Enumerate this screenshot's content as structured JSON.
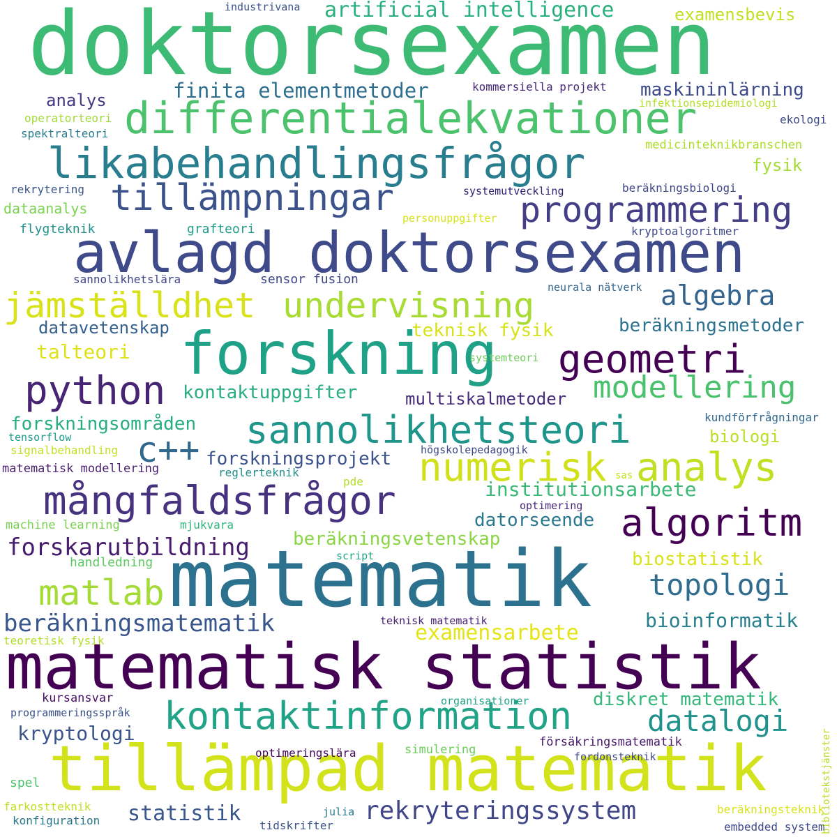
{
  "words": [
    {
      "text": "doktorsexamen",
      "color": "#3dbb74"
    },
    {
      "text": "avlagd doktorsexamen",
      "color": "#3f4a8a"
    },
    {
      "text": "differentialekvationer",
      "color": "#4cc26c"
    },
    {
      "text": "likabehandlingsfrågor",
      "color": "#287d8e"
    },
    {
      "text": "tillämpningar",
      "color": "#3b528b"
    },
    {
      "text": "programmering",
      "color": "#433e85"
    },
    {
      "text": "artificial intelligence",
      "color": "#2ab07f"
    },
    {
      "text": "examensbevis",
      "color": "#c2df23"
    },
    {
      "text": "finita elementmetoder",
      "color": "#2e6e8e"
    },
    {
      "text": "maskininlärning",
      "color": "#3e4989"
    },
    {
      "text": "kommersiella projekt",
      "color": "#482878"
    },
    {
      "text": "analys",
      "color": "#453781"
    },
    {
      "text": "industrivana",
      "color": "#3b528b"
    },
    {
      "text": "jämställdhet",
      "color": "#d8e219"
    },
    {
      "text": "undervisning",
      "color": "#a8db34"
    },
    {
      "text": "algebra",
      "color": "#33638d"
    },
    {
      "text": "forskning",
      "color": "#1fa187"
    },
    {
      "text": "geometri",
      "color": "#440154"
    },
    {
      "text": "python",
      "color": "#482475"
    },
    {
      "text": "modellering",
      "color": "#4ac16d"
    },
    {
      "text": "sannolikhetsteori",
      "color": "#1f968b"
    },
    {
      "text": "c++",
      "color": "#31688e"
    },
    {
      "text": "numerisk",
      "color": "#d0e11c"
    },
    {
      "text": "analys",
      "color": "#c2df23"
    },
    {
      "text": "mångfaldsfrågor",
      "color": "#46327e"
    },
    {
      "text": "algoritm",
      "color": "#440154"
    },
    {
      "text": "matematik",
      "color": "#2c728e"
    },
    {
      "text": "matematisk statistik",
      "color": "#440154"
    },
    {
      "text": "tillämpad matematik",
      "color": "#d2e21b"
    },
    {
      "text": "kontaktinformation",
      "color": "#20a386"
    },
    {
      "text": "datalogi",
      "color": "#21918c"
    },
    {
      "text": "topologi",
      "color": "#2f6c8e"
    },
    {
      "text": "matlab",
      "color": "#a5db36"
    },
    {
      "text": "forskarutbildning",
      "color": "#481c6e"
    },
    {
      "text": "beräkningsmatematik",
      "color": "#39568c"
    },
    {
      "text": "examensarbete",
      "color": "#e5e419"
    },
    {
      "text": "rekryteringssystem",
      "color": "#404688"
    },
    {
      "text": "statistik",
      "color": "#39568c"
    },
    {
      "text": "kryptologi",
      "color": "#3b528b"
    },
    {
      "text": "diskret matematik",
      "color": "#35b779"
    },
    {
      "text": "bioinformatik",
      "color": "#277f8e"
    },
    {
      "text": "biostatistik",
      "color": "#d8e219"
    },
    {
      "text": "datorseende",
      "color": "#2a788e"
    },
    {
      "text": "institutionsarbete",
      "color": "#3aba76"
    },
    {
      "text": "beräkningsvetenskap",
      "color": "#8bd646"
    },
    {
      "text": "forskningsprojekt",
      "color": "#3b528b"
    },
    {
      "text": "multiskalmetoder",
      "color": "#472c7a"
    },
    {
      "text": "kontaktuppgifter",
      "color": "#29af7f"
    },
    {
      "text": "forskningsområden",
      "color": "#26ad81"
    },
    {
      "text": "beräkningsmetoder",
      "color": "#2c728e"
    },
    {
      "text": "teknisk fysik",
      "color": "#d8e219"
    },
    {
      "text": "datavetenskap",
      "color": "#355f8d"
    },
    {
      "text": "talteori",
      "color": "#dde318"
    },
    {
      "text": "biologi",
      "color": "#bade28"
    },
    {
      "text": "fysik",
      "color": "#a5db36"
    },
    {
      "text": "neurala nätverk",
      "color": "#32658e"
    },
    {
      "text": "sannolikhetslära",
      "color": "#414487"
    },
    {
      "text": "sensor fusion",
      "color": "#3f4788"
    },
    {
      "text": "flygteknik",
      "color": "#21918c"
    },
    {
      "text": "grafteori",
      "color": "#1f9e89"
    },
    {
      "text": "personuppgifter",
      "color": "#d8e219"
    },
    {
      "text": "kryptoalgoritmer",
      "color": "#3e4a89"
    },
    {
      "text": "dataanalys",
      "color": "#7ad151"
    },
    {
      "text": "rekrytering",
      "color": "#39568c"
    },
    {
      "text": "systemutveckling",
      "color": "#2d1e72"
    },
    {
      "text": "beräkningsbiologi",
      "color": "#404688"
    },
    {
      "text": "spektralteori",
      "color": "#287d8e"
    },
    {
      "text": "operatorteori",
      "color": "#a0da39"
    },
    {
      "text": "infektionsepidemiologi",
      "color": "#b5de2b"
    },
    {
      "text": "ekologi",
      "color": "#3e4a89"
    },
    {
      "text": "medicinteknikbranschen",
      "color": "#addc30"
    },
    {
      "text": "systemteori",
      "color": "#6ccd5a"
    },
    {
      "text": "kundförfrågningar",
      "color": "#31688e"
    },
    {
      "text": "tensorflow",
      "color": "#1f9a8a"
    },
    {
      "text": "signalbehandling",
      "color": "#c2df23"
    },
    {
      "text": "högskolepedagogik",
      "color": "#3e4989"
    },
    {
      "text": "matematisk modellering",
      "color": "#481f70"
    },
    {
      "text": "reglerteknik",
      "color": "#21918c"
    },
    {
      "text": "sas",
      "color": "#c8e020"
    },
    {
      "text": "pde",
      "color": "#b5de2b"
    },
    {
      "text": "optimering",
      "color": "#482878"
    },
    {
      "text": "machine learning",
      "color": "#7ad151"
    },
    {
      "text": "mjukvara",
      "color": "#2fb47c"
    },
    {
      "text": "handledning",
      "color": "#5ec962"
    },
    {
      "text": "script",
      "color": "#22a884"
    },
    {
      "text": "teknisk matematik",
      "color": "#482173"
    },
    {
      "text": "teoretisk fysik",
      "color": "#b5de2b"
    },
    {
      "text": "kursansvar",
      "color": "#471063"
    },
    {
      "text": "organisationer",
      "color": "#20a486"
    },
    {
      "text": "programmeringsspråk",
      "color": "#3b528b"
    },
    {
      "text": "försäkringsmatematik",
      "color": "#481a6c"
    },
    {
      "text": "optimeringslära",
      "color": "#46085c"
    },
    {
      "text": "simulering",
      "color": "#6ccd5a"
    },
    {
      "text": "fordonsteknik",
      "color": "#3e4a89"
    },
    {
      "text": "spel",
      "color": "#4ec36b"
    },
    {
      "text": "farkostteknik",
      "color": "#c2df23"
    },
    {
      "text": "beräkningsteknik",
      "color": "#d8e219"
    },
    {
      "text": "konfiguration",
      "color": "#2a788e"
    },
    {
      "text": "julia",
      "color": "#2a788e"
    },
    {
      "text": "tidskrifter",
      "color": "#3b528b"
    },
    {
      "text": "embedded system",
      "color": "#3e4a89"
    },
    {
      "text": "bibliotekstjänster",
      "color": "#b5de2b"
    }
  ]
}
